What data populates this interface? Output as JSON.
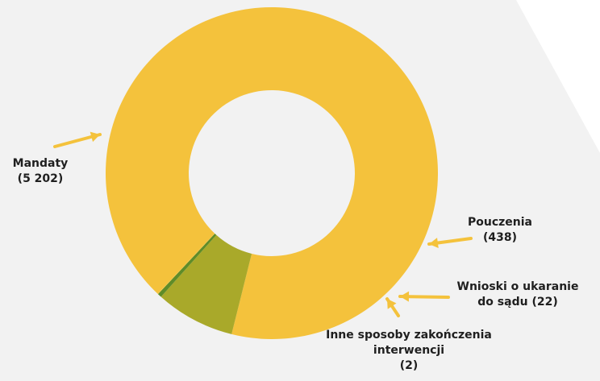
{
  "chart_data": {
    "type": "pie",
    "variant": "donut",
    "categories": [
      "Mandaty",
      "Pouczenia",
      "Wnioski o ukaranie do sądu",
      "Inne sposoby zakończenia interwencji"
    ],
    "values": [
      5202,
      438,
      22,
      2
    ],
    "colors": [
      "#f4c23c",
      "#a9a92a",
      "#5f8c28",
      "#f4c23c"
    ],
    "labels": [
      {
        "lines": [
          "Mandaty",
          "(5 202)"
        ]
      },
      {
        "lines": [
          "Pouczenia",
          "(438)"
        ]
      },
      {
        "lines": [
          "Wnioski o ukaranie",
          "do sądu (22)"
        ]
      },
      {
        "lines": [
          "Inne sposoby zakończenia",
          "interwencji",
          "(2)"
        ]
      }
    ],
    "arrow_color": "#f4c23c",
    "legend": "none"
  }
}
